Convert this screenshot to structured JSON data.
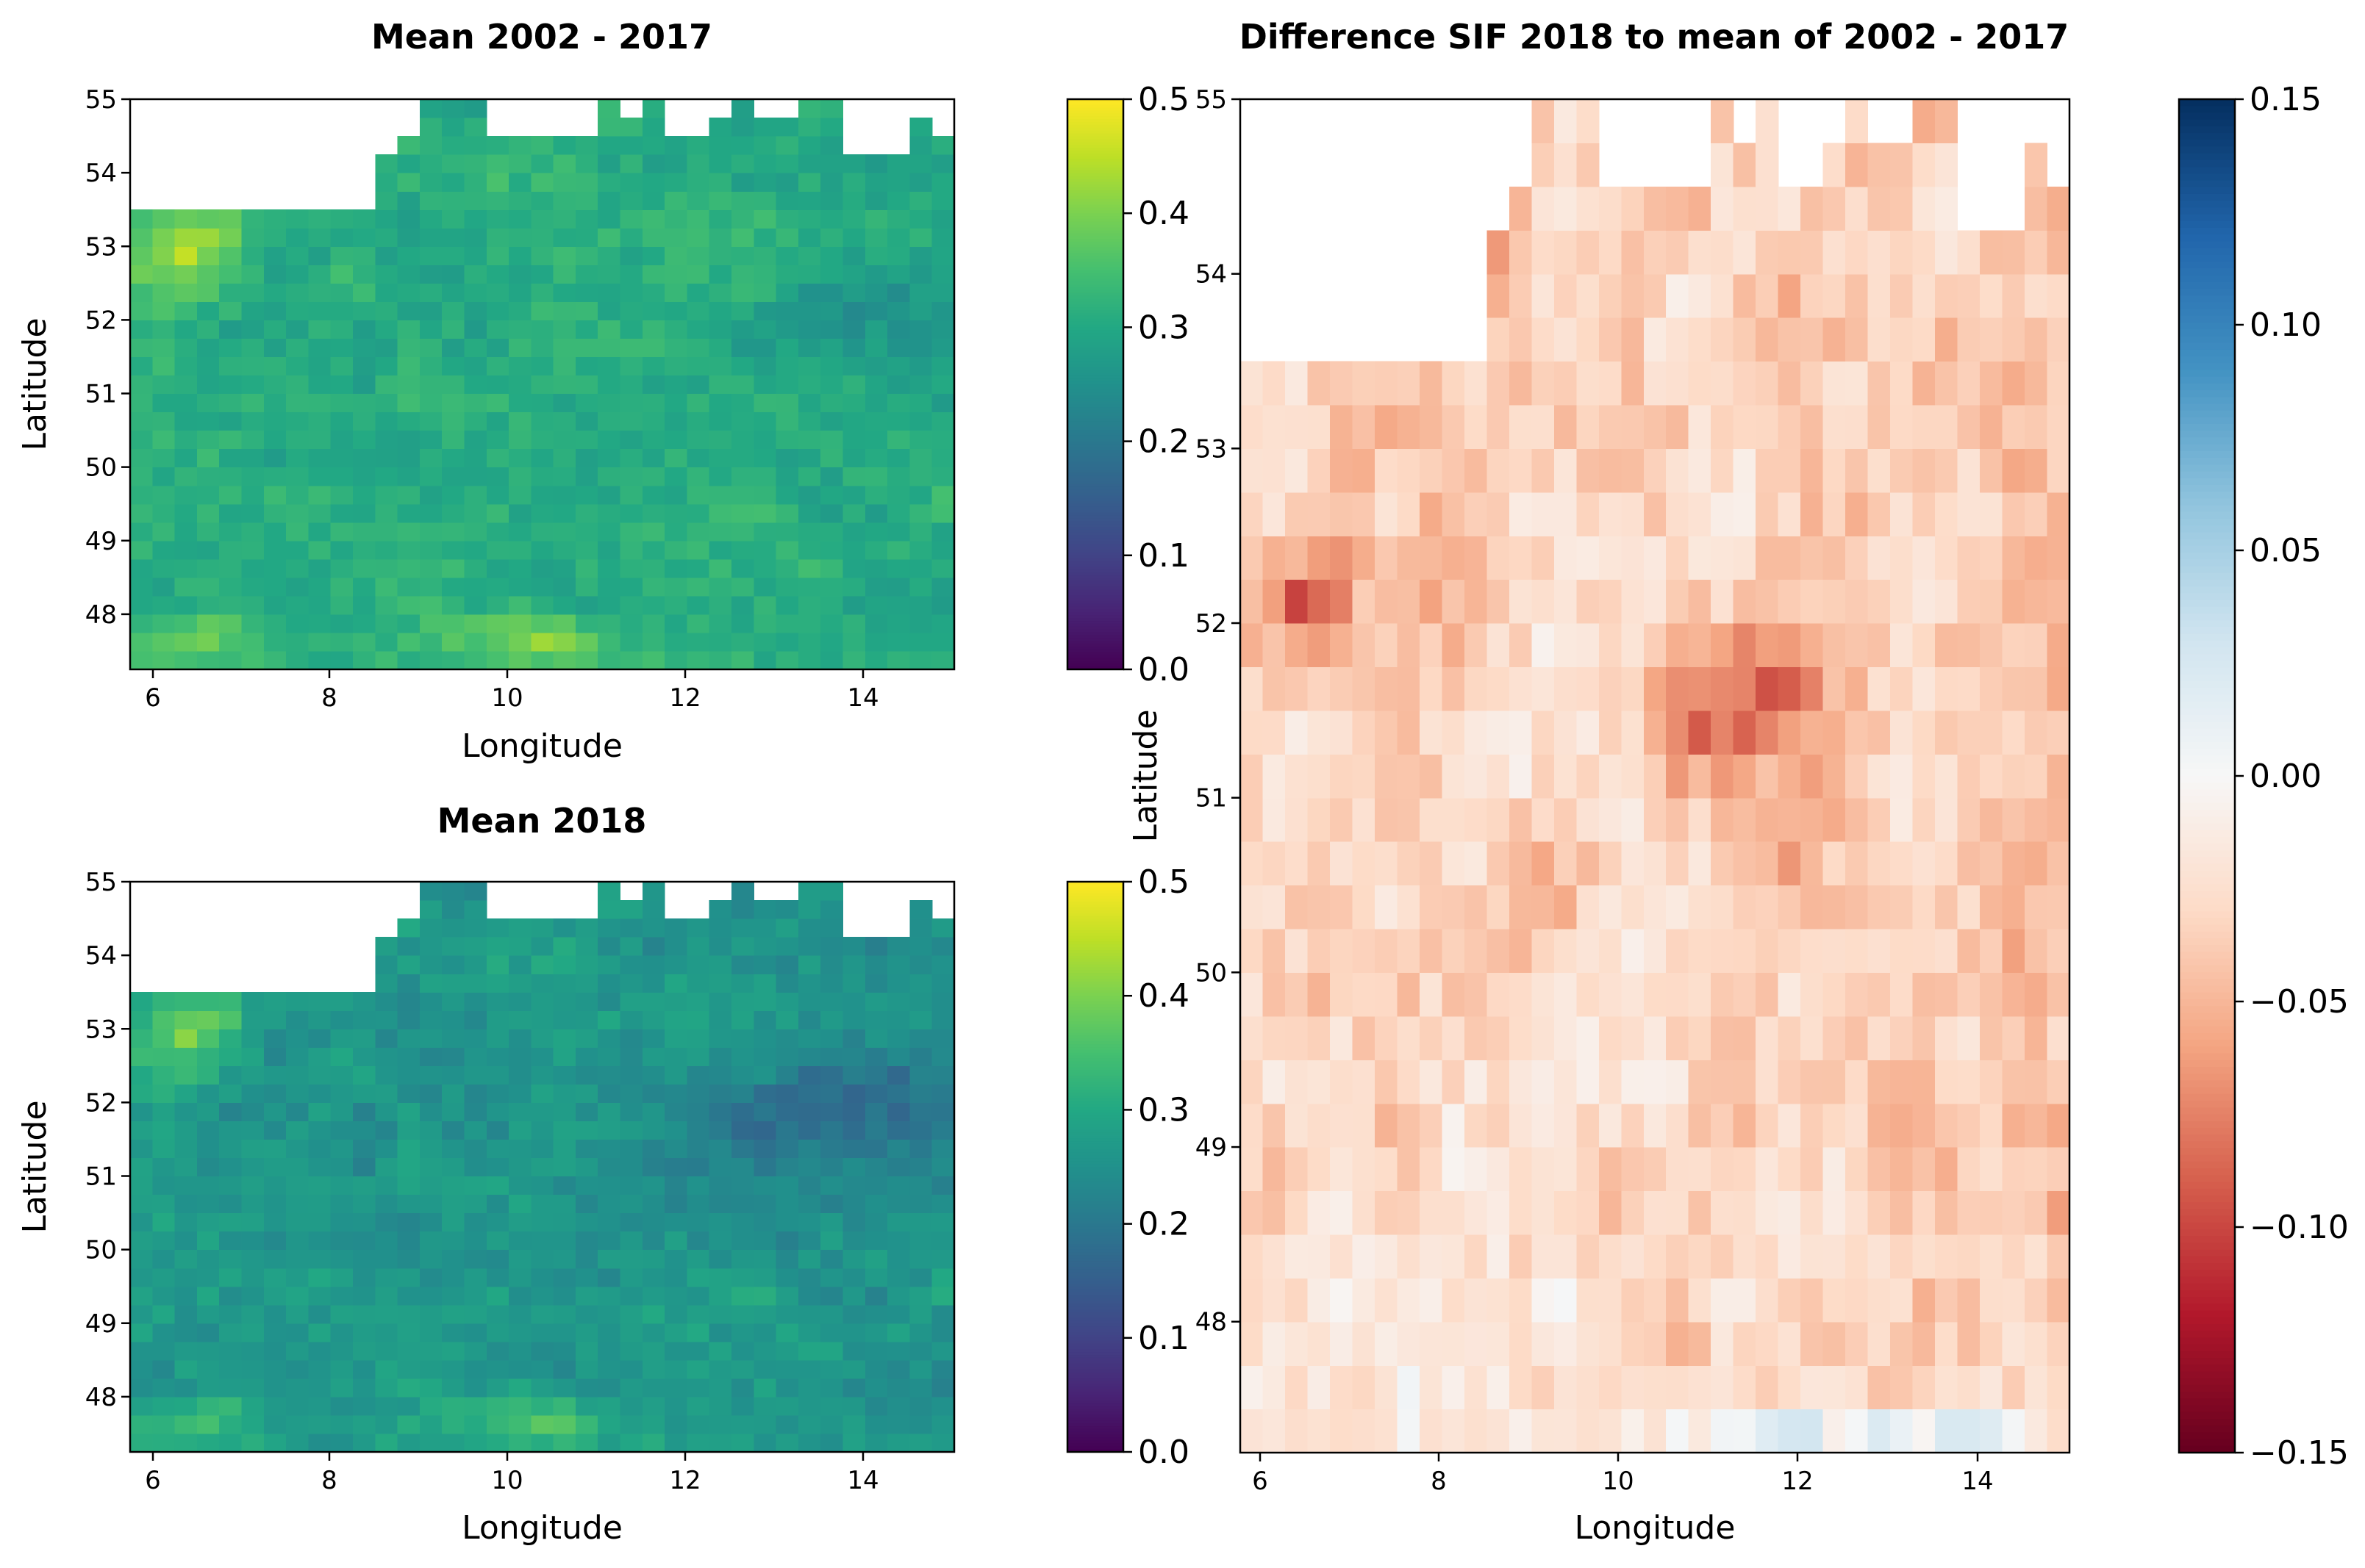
{
  "chart_data": [
    {
      "type": "heatmap",
      "title": "Mean 2002 - 2017",
      "xlabel": "Longitude",
      "ylabel": "Latitude",
      "xlim": [
        5.75,
        15.0
      ],
      "ylim": [
        47.25,
        55.0
      ],
      "xticks": [
        6,
        8,
        10,
        12,
        14
      ],
      "yticks": [
        48,
        49,
        50,
        51,
        52,
        53,
        54,
        55
      ],
      "colormap": "viridis",
      "colorbar": {
        "min": 0.0,
        "max": 0.5,
        "ticks": [
          "0.0",
          "0.1",
          "0.2",
          "0.3",
          "0.4",
          "0.5"
        ]
      },
      "grid": {
        "lon_start": 5.75,
        "lat_start": 47.25,
        "cell_deg": 0.25,
        "cols": 37,
        "rows": 31
      },
      "summary": {
        "typical_value": 0.33,
        "range": [
          0.24,
          0.48
        ],
        "highest": "southern edge near lon 10-10.5 and northwest corner (lon 6-6.5, lat 52.5-53.5)"
      }
    },
    {
      "type": "heatmap",
      "title": "Mean 2018",
      "xlabel": "Longitude",
      "ylabel": "Latitude",
      "xlim": [
        5.75,
        15.0
      ],
      "ylim": [
        47.25,
        55.0
      ],
      "xticks": [
        6,
        8,
        10,
        12,
        14
      ],
      "yticks": [
        48,
        49,
        50,
        51,
        52,
        53,
        54,
        55
      ],
      "colormap": "viridis",
      "colorbar": {
        "min": 0.0,
        "max": 0.5,
        "ticks": [
          "0.0",
          "0.1",
          "0.2",
          "0.3",
          "0.4",
          "0.5"
        ]
      },
      "grid": {
        "lon_start": 5.75,
        "lat_start": 47.25,
        "cell_deg": 0.25,
        "cols": 37,
        "rows": 31
      },
      "summary": {
        "typical_value": 0.28,
        "range": [
          0.2,
          0.45
        ],
        "lowest": "east-central area around lon 11-14, lat 50.5-52.5"
      }
    },
    {
      "type": "heatmap",
      "title": "Difference SIF 2018 to mean of 2002 - 2017",
      "xlabel": "Longitude",
      "ylabel": "Latitude",
      "xlim": [
        5.75,
        15.0
      ],
      "ylim": [
        47.25,
        55.0
      ],
      "xticks": [
        6,
        8,
        10,
        12,
        14
      ],
      "yticks": [
        48,
        49,
        50,
        51,
        52,
        53,
        54,
        55
      ],
      "colormap": "RdBu",
      "colorbar": {
        "min": -0.15,
        "max": 0.15,
        "ticks": [
          "0.15",
          "0.10",
          "0.05",
          "0.00",
          "−0.05",
          "−0.10",
          "−0.15"
        ]
      },
      "grid": {
        "lon_start": 5.75,
        "lat_start": 47.25,
        "cell_deg": 0.25,
        "cols": 37,
        "rows": 31
      },
      "summary": {
        "typical_value": -0.04,
        "range": [
          -0.14,
          0.03
        ],
        "most_negative": "west near lon 6.5, lat 52 and centre near lon 11-11.5, lat 51-51.5",
        "positive": "southern strip lon 10-15, lat 47.25-47.75"
      }
    }
  ]
}
